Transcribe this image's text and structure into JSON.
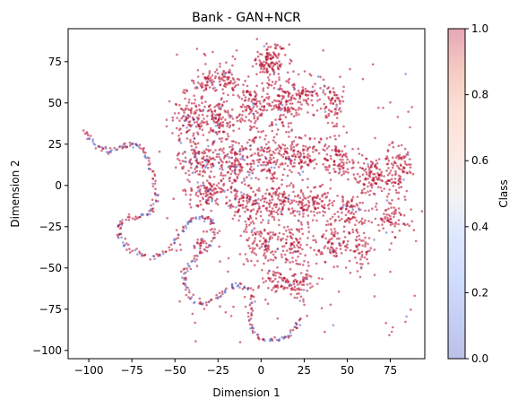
{
  "chart_data": {
    "type": "scatter",
    "title": "Bank - GAN+NCR",
    "xlabel": "Dimension 1",
    "ylabel": "Dimension 2",
    "xlim": [
      -112,
      95
    ],
    "ylim": [
      -105,
      95
    ],
    "xticks": [
      -100,
      -75,
      -50,
      -25,
      0,
      25,
      50,
      75
    ],
    "yticks": [
      -100,
      -75,
      -50,
      -25,
      0,
      25,
      50,
      75
    ],
    "grid": false,
    "colorbar": {
      "label": "Class",
      "colormap": "coolwarm",
      "range": [
        0.0,
        1.0
      ],
      "ticks": [
        "0.0",
        "0.2",
        "0.4",
        "0.6",
        "0.8",
        "1.0"
      ]
    },
    "point_alpha": 0.35,
    "colors": {
      "class_1": "#b40426",
      "class_0": "#3b4cc0"
    },
    "clusters": [
      {
        "cx": 5,
        "cy": 75,
        "rx": 8,
        "ry": 9,
        "n": 120,
        "class0_ratio": 0.02
      },
      {
        "cx": -20,
        "cy": 65,
        "rx": 8,
        "ry": 7,
        "n": 70,
        "class0_ratio": 0.03
      },
      {
        "cx": -33,
        "cy": 62,
        "rx": 6,
        "ry": 6,
        "n": 45,
        "class0_ratio": 0.03
      },
      {
        "cx": -42,
        "cy": 40,
        "rx": 10,
        "ry": 14,
        "n": 130,
        "class0_ratio": 0.06
      },
      {
        "cx": -25,
        "cy": 40,
        "rx": 9,
        "ry": 11,
        "n": 110,
        "class0_ratio": 0.05
      },
      {
        "cx": -5,
        "cy": 48,
        "rx": 9,
        "ry": 12,
        "n": 120,
        "class0_ratio": 0.05
      },
      {
        "cx": 12,
        "cy": 48,
        "rx": 8,
        "ry": 13,
        "n": 110,
        "class0_ratio": 0.05
      },
      {
        "cx": 25,
        "cy": 55,
        "rx": 9,
        "ry": 9,
        "n": 80,
        "class0_ratio": 0.03
      },
      {
        "cx": 42,
        "cy": 48,
        "rx": 6,
        "ry": 12,
        "n": 70,
        "class0_ratio": 0.02
      },
      {
        "cx": -35,
        "cy": 15,
        "rx": 12,
        "ry": 10,
        "n": 120,
        "class0_ratio": 0.08
      },
      {
        "cx": -15,
        "cy": 15,
        "rx": 10,
        "ry": 12,
        "n": 140,
        "class0_ratio": 0.12
      },
      {
        "cx": 5,
        "cy": 15,
        "rx": 10,
        "ry": 12,
        "n": 130,
        "class0_ratio": 0.05
      },
      {
        "cx": 25,
        "cy": 18,
        "rx": 10,
        "ry": 10,
        "n": 110,
        "class0_ratio": 0.03
      },
      {
        "cx": 45,
        "cy": 15,
        "rx": 8,
        "ry": 10,
        "n": 90,
        "class0_ratio": 0.02
      },
      {
        "cx": 65,
        "cy": 5,
        "rx": 10,
        "ry": 12,
        "n": 120,
        "class0_ratio": 0.02
      },
      {
        "cx": 80,
        "cy": 10,
        "rx": 6,
        "ry": 14,
        "n": 90,
        "class0_ratio": 0.02
      },
      {
        "cx": 75,
        "cy": -20,
        "rx": 8,
        "ry": 9,
        "n": 70,
        "class0_ratio": 0.02
      },
      {
        "cx": -30,
        "cy": -5,
        "rx": 10,
        "ry": 8,
        "n": 100,
        "class0_ratio": 0.06
      },
      {
        "cx": -10,
        "cy": -10,
        "rx": 10,
        "ry": 9,
        "n": 110,
        "class0_ratio": 0.06
      },
      {
        "cx": 10,
        "cy": -10,
        "rx": 10,
        "ry": 10,
        "n": 110,
        "class0_ratio": 0.04
      },
      {
        "cx": 30,
        "cy": -10,
        "rx": 10,
        "ry": 9,
        "n": 100,
        "class0_ratio": 0.03
      },
      {
        "cx": 50,
        "cy": -15,
        "rx": 9,
        "ry": 8,
        "n": 80,
        "class0_ratio": 0.02
      },
      {
        "cx": 0,
        "cy": -35,
        "rx": 10,
        "ry": 12,
        "n": 110,
        "class0_ratio": 0.03
      },
      {
        "cx": 20,
        "cy": -35,
        "rx": 9,
        "ry": 12,
        "n": 100,
        "class0_ratio": 0.02
      },
      {
        "cx": 42,
        "cy": -35,
        "rx": 8,
        "ry": 10,
        "n": 80,
        "class0_ratio": 0.02
      },
      {
        "cx": 58,
        "cy": -38,
        "rx": 6,
        "ry": 10,
        "n": 60,
        "class0_ratio": 0.02
      },
      {
        "cx": 22,
        "cy": -60,
        "rx": 9,
        "ry": 8,
        "n": 70,
        "class0_ratio": 0.02
      },
      {
        "cx": 10,
        "cy": -58,
        "rx": 7,
        "ry": 7,
        "n": 50,
        "class0_ratio": 0.02
      },
      {
        "cx": -35,
        "cy": -35,
        "rx": 5,
        "ry": 6,
        "n": 25,
        "class0_ratio": 0.02
      }
    ],
    "curve": {
      "points": [
        [
          -103,
          33
        ],
        [
          -98,
          27
        ],
        [
          -93,
          22
        ],
        [
          -87,
          21
        ],
        [
          -81,
          23
        ],
        [
          -76,
          25
        ],
        [
          -71,
          24
        ],
        [
          -67,
          18
        ],
        [
          -64,
          9
        ],
        [
          -62,
          0
        ],
        [
          -61,
          -9
        ],
        [
          -64,
          -16
        ],
        [
          -70,
          -19
        ],
        [
          -77,
          -20
        ],
        [
          -82,
          -24
        ],
        [
          -83,
          -30
        ],
        [
          -79,
          -36
        ],
        [
          -72,
          -41
        ],
        [
          -64,
          -43
        ],
        [
          -56,
          -41
        ],
        [
          -50,
          -34
        ],
        [
          -45,
          -26
        ],
        [
          -40,
          -21
        ],
        [
          -33,
          -19
        ],
        [
          -28,
          -21
        ],
        [
          -27,
          -29
        ],
        [
          -31,
          -38
        ],
        [
          -38,
          -44
        ],
        [
          -44,
          -50
        ],
        [
          -45,
          -57
        ],
        [
          -43,
          -64
        ],
        [
          -38,
          -70
        ],
        [
          -31,
          -72
        ],
        [
          -24,
          -67
        ],
        [
          -18,
          -61
        ],
        [
          -12,
          -60
        ],
        [
          -6,
          -64
        ],
        [
          -5,
          -72
        ],
        [
          -6,
          -80
        ],
        [
          -5,
          -88
        ],
        [
          0,
          -93
        ],
        [
          8,
          -94
        ],
        [
          15,
          -92
        ],
        [
          20,
          -86
        ],
        [
          23,
          -80
        ]
      ],
      "segment_samples": 9,
      "jitter": 0.9,
      "class0_ratio": 0.35
    },
    "scatter_noise": {
      "n": 140,
      "class0_ratio": 0.04
    }
  }
}
